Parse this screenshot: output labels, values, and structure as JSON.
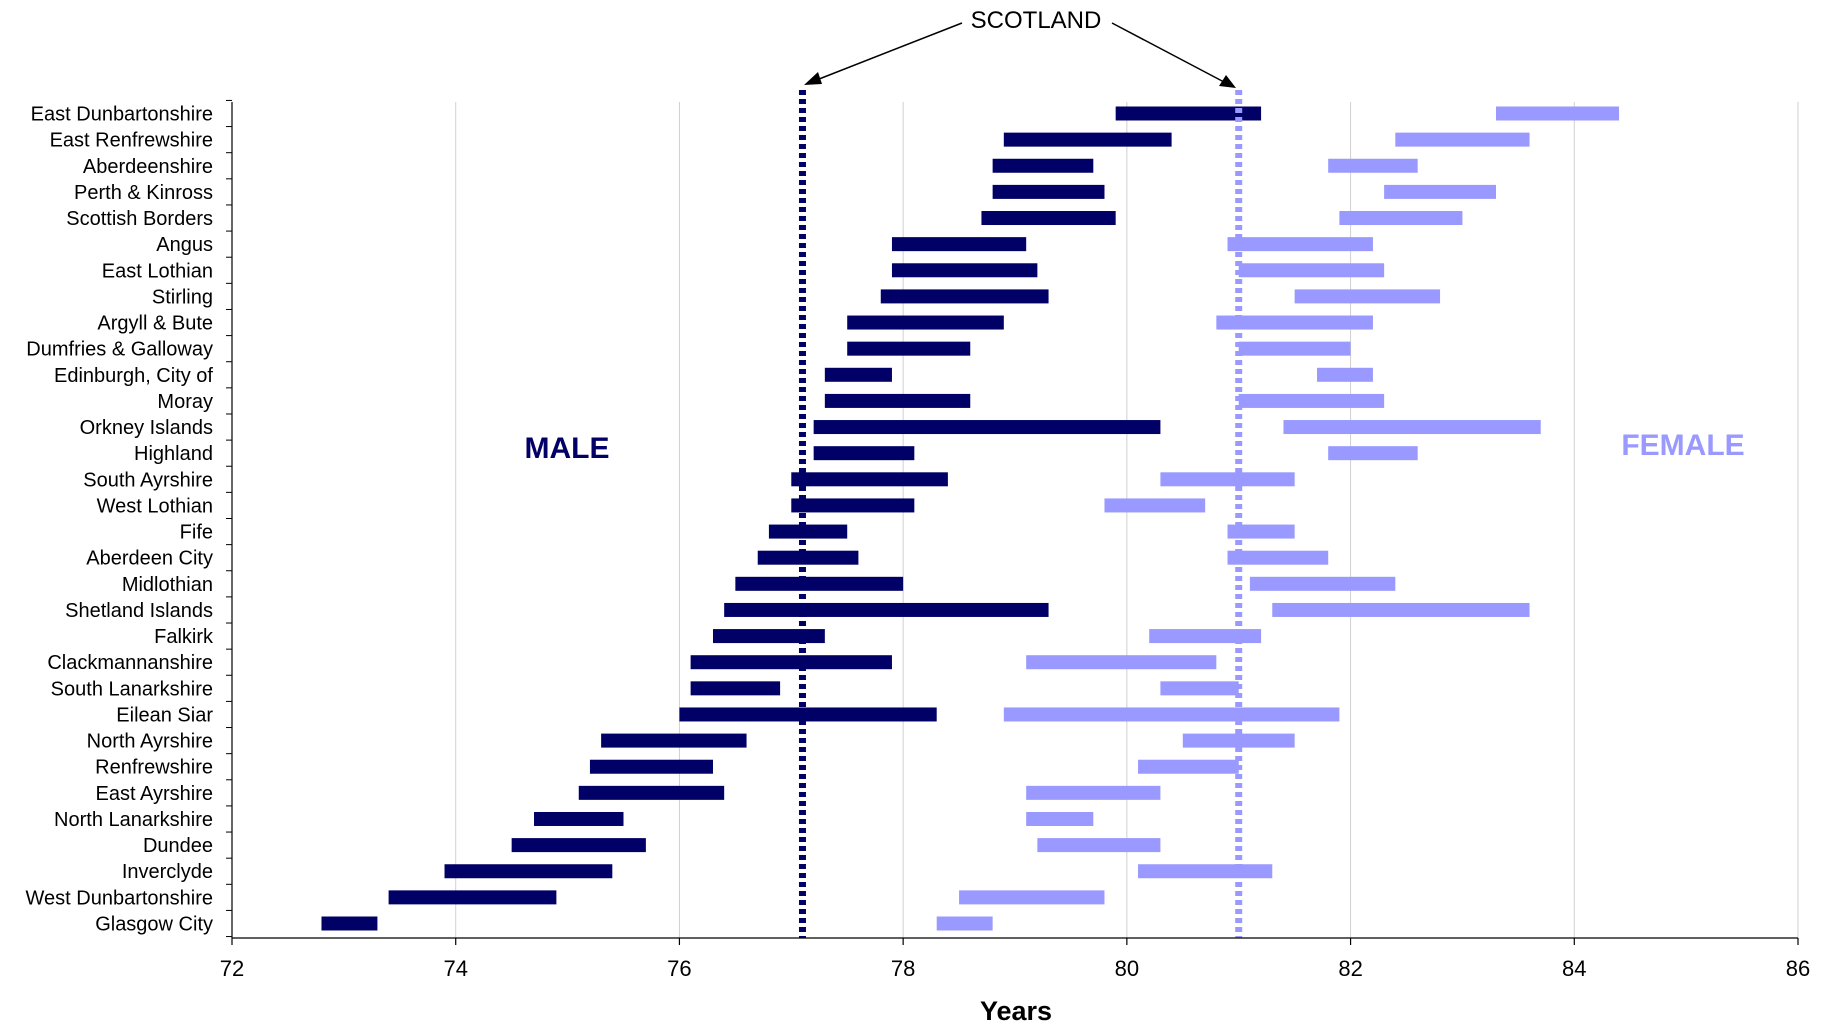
{
  "chart_data": {
    "type": "bar",
    "subtype": "floating-range",
    "xlabel": "Years",
    "xlim": [
      72,
      86
    ],
    "x_ticks": [
      "72",
      "74",
      "76",
      "78",
      "80",
      "82",
      "84",
      "86"
    ],
    "grid": "vertical",
    "categories": [
      "East Dunbartonshire",
      "East Renfrewshire",
      "Aberdeenshire",
      "Perth & Kinross",
      "Scottish Borders",
      "Angus",
      "East Lothian",
      "Stirling",
      "Argyll & Bute",
      "Dumfries & Galloway",
      "Edinburgh, City of",
      "Moray",
      "Orkney Islands",
      "Highland",
      "South Ayrshire",
      "West Lothian",
      "Fife",
      "Aberdeen City",
      "Midlothian",
      "Shetland Islands",
      "Falkirk",
      "Clackmannanshire",
      "South Lanarkshire",
      "Eilean Siar",
      "North Ayrshire",
      "Renfrewshire",
      "East Ayrshire",
      "North Lanarkshire",
      "Dundee",
      "Inverclyde",
      "West Dunbartonshire",
      "Glasgow City"
    ],
    "series": [
      {
        "name": "MALE",
        "color": "#000066",
        "ranges": [
          [
            79.9,
            81.2
          ],
          [
            78.9,
            80.4
          ],
          [
            78.8,
            79.7
          ],
          [
            78.8,
            79.8
          ],
          [
            78.7,
            79.9
          ],
          [
            77.9,
            79.1
          ],
          [
            77.9,
            79.2
          ],
          [
            77.8,
            79.3
          ],
          [
            77.5,
            78.9
          ],
          [
            77.5,
            78.6
          ],
          [
            77.3,
            77.9
          ],
          [
            77.3,
            78.6
          ],
          [
            77.2,
            80.3
          ],
          [
            77.2,
            78.1
          ],
          [
            77.0,
            78.4
          ],
          [
            77.0,
            78.1
          ],
          [
            76.8,
            77.5
          ],
          [
            76.7,
            77.6
          ],
          [
            76.5,
            78.0
          ],
          [
            76.4,
            79.3
          ],
          [
            76.3,
            77.3
          ],
          [
            76.1,
            77.9
          ],
          [
            76.1,
            76.9
          ],
          [
            76.0,
            78.3
          ],
          [
            75.3,
            76.6
          ],
          [
            75.2,
            76.3
          ],
          [
            75.1,
            76.4
          ],
          [
            74.7,
            75.5
          ],
          [
            74.5,
            75.7
          ],
          [
            73.9,
            75.4
          ],
          [
            73.4,
            74.9
          ],
          [
            72.8,
            73.3
          ]
        ]
      },
      {
        "name": "FEMALE",
        "color": "#9999FF",
        "ranges": [
          [
            83.3,
            84.4
          ],
          [
            82.4,
            83.6
          ],
          [
            81.8,
            82.6
          ],
          [
            82.3,
            83.3
          ],
          [
            81.9,
            83.0
          ],
          [
            80.9,
            82.2
          ],
          [
            81.0,
            82.3
          ],
          [
            81.5,
            82.8
          ],
          [
            80.8,
            82.2
          ],
          [
            81.0,
            82.0
          ],
          [
            81.7,
            82.2
          ],
          [
            81.0,
            82.3
          ],
          [
            81.4,
            83.7
          ],
          [
            81.8,
            82.6
          ],
          [
            80.3,
            81.5
          ],
          [
            79.8,
            80.7
          ],
          [
            80.9,
            81.5
          ],
          [
            80.9,
            81.8
          ],
          [
            81.1,
            82.4
          ],
          [
            81.3,
            83.6
          ],
          [
            80.2,
            81.2
          ],
          [
            79.1,
            80.8
          ],
          [
            80.3,
            81.0
          ],
          [
            78.9,
            81.9
          ],
          [
            80.5,
            81.5
          ],
          [
            80.1,
            81.0
          ],
          [
            79.1,
            80.3
          ],
          [
            79.1,
            79.7
          ],
          [
            79.2,
            80.3
          ],
          [
            80.1,
            81.3
          ],
          [
            78.5,
            79.8
          ],
          [
            78.3,
            78.8
          ]
        ]
      }
    ],
    "reference_lines": [
      {
        "series": "MALE",
        "value": 77.1,
        "color": "#000066",
        "style": "dotted"
      },
      {
        "series": "FEMALE",
        "value": 81.0,
        "color": "#9999FF",
        "style": "dotted"
      }
    ],
    "annotations": {
      "reference_label": "SCOTLAND",
      "male_label": "MALE",
      "female_label": "FEMALE"
    }
  }
}
